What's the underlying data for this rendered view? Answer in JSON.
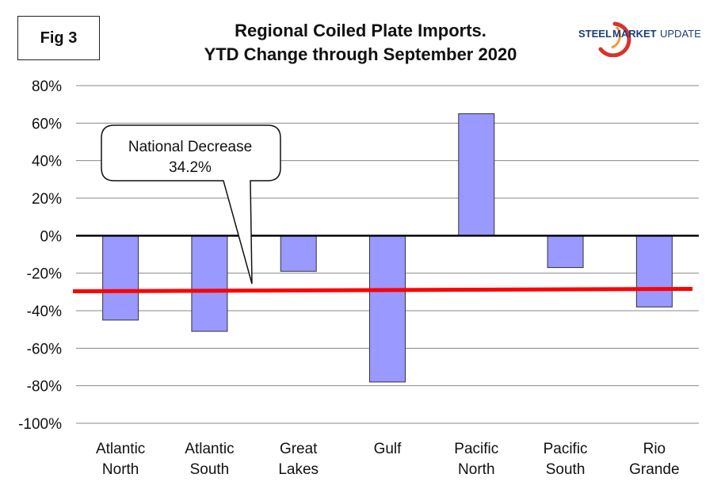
{
  "figure_label": "Fig 3",
  "brand": {
    "steel": "STEEL",
    "market": "MARKET",
    "update": "UPDATE",
    "colors": {
      "navy": "#1f3c78",
      "red": "#d9322b",
      "orange": "#f29a2e"
    }
  },
  "callout": {
    "line1": "National Decrease",
    "line2": "34.2%"
  },
  "chart_data": {
    "type": "bar",
    "title": "Regional Coiled Plate Imports.",
    "subtitle": "YTD Change through September 2020",
    "xlabel": "",
    "ylabel": "",
    "ylim": [
      -100,
      80
    ],
    "y_ticks": [
      80,
      60,
      40,
      20,
      0,
      -20,
      -40,
      -60,
      -80,
      -100
    ],
    "y_tick_labels": [
      "80%",
      "60%",
      "40%",
      "20%",
      "0%",
      "-20%",
      "-40%",
      "-60%",
      "-80%",
      "-100%"
    ],
    "categories": [
      [
        "Atlantic",
        "North"
      ],
      [
        "Atlantic",
        "South"
      ],
      [
        "Great",
        "Lakes"
      ],
      [
        "Gulf"
      ],
      [
        "Pacific",
        "North"
      ],
      [
        "Pacific",
        "South"
      ],
      [
        "Rio",
        "Grande"
      ]
    ],
    "values": [
      -45,
      -51,
      -19,
      -78,
      65,
      -17,
      -38
    ],
    "reference_line": {
      "value": -29,
      "color": "#ff0000"
    },
    "grid": true,
    "colors": {
      "bar_fill": "#9999ff",
      "bar_stroke": "#333333",
      "grid": "#888888",
      "zero_line": "#000000"
    }
  }
}
